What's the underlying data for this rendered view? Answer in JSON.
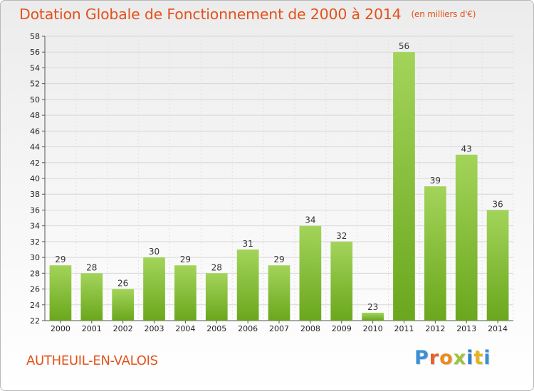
{
  "title": "Dotation Globale de Fonctionnement de 2000 à 2014",
  "unit": "(en milliers d'€)",
  "location": "AUTHEUIL-EN-VALOIS",
  "logo": {
    "text": "Proxiti",
    "letter_colors": [
      "#3a8fd6",
      "#e8612c",
      "#ef8a1c",
      "#9cc43a",
      "#2e7fd0",
      "#e8b21c"
    ]
  },
  "colors": {
    "title": "#e2521c",
    "bar_light": "#a3d45a",
    "bar_dark": "#6aa71d"
  },
  "chart_data": {
    "type": "bar",
    "categories": [
      "2000",
      "2001",
      "2002",
      "2003",
      "2004",
      "2005",
      "2006",
      "2007",
      "2008",
      "2009",
      "2010",
      "2011",
      "2012",
      "2013",
      "2014"
    ],
    "values": [
      29,
      28,
      26,
      30,
      29,
      28,
      31,
      29,
      34,
      32,
      23,
      56,
      39,
      43,
      36
    ],
    "ylim": [
      22,
      58
    ],
    "yticks": [
      22,
      24,
      26,
      28,
      30,
      32,
      34,
      36,
      38,
      40,
      42,
      44,
      46,
      48,
      50,
      52,
      54,
      56,
      58
    ],
    "grid": true,
    "legend": "none",
    "data_labels": true
  }
}
